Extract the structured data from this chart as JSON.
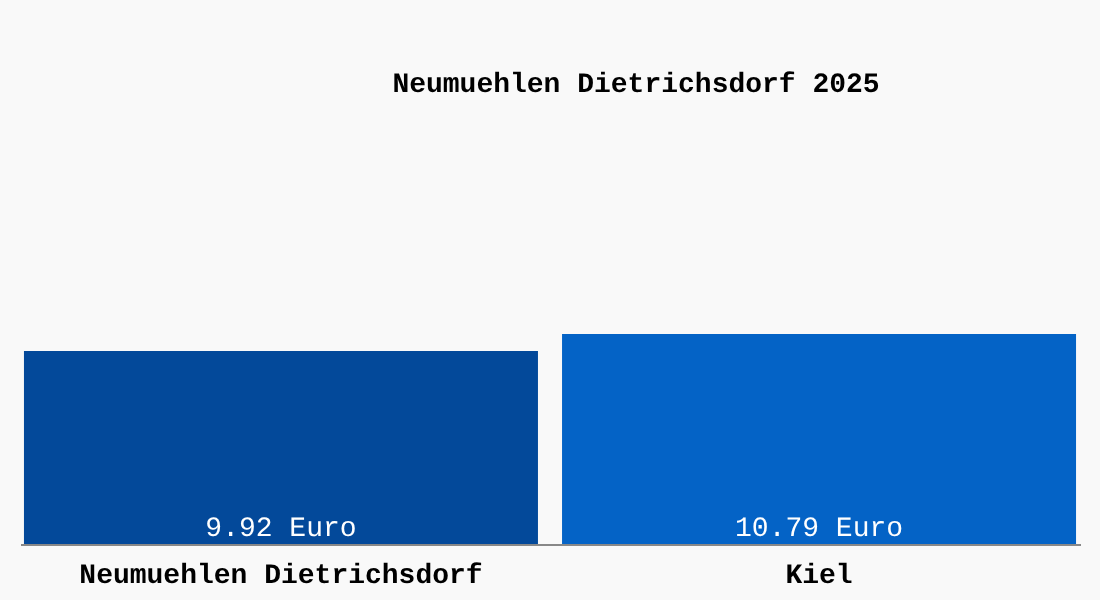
{
  "chart_data": {
    "type": "bar",
    "title": "Neumuehlen Dietrichsdorf 2025",
    "categories": [
      "Neumuehlen Dietrichsdorf",
      "Kiel"
    ],
    "values": [
      9.92,
      10.79
    ],
    "colors": [
      "#03499a",
      "#0463c6"
    ],
    "value_labels": [
      "9.92 Euro",
      "10.79 Euro"
    ],
    "grid": false
  }
}
